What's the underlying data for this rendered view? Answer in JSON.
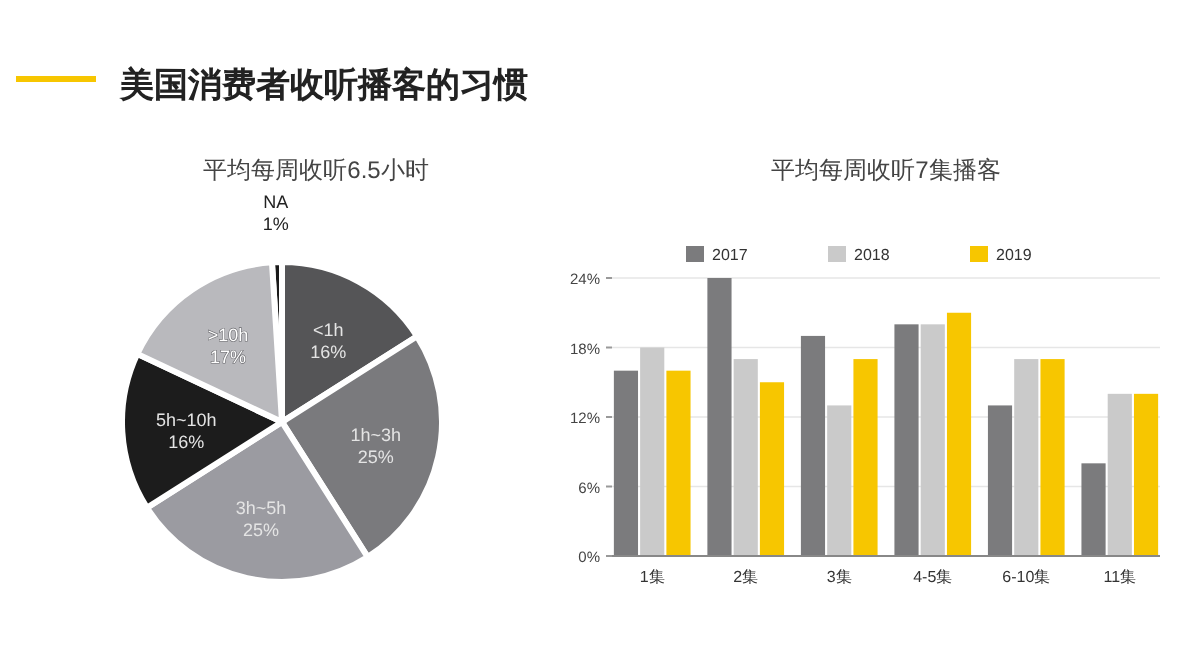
{
  "chart_data": [
    {
      "type": "pie",
      "title": "美国消费者收听播客的习惯",
      "subtitle": "平均每周收听6.5小时",
      "categories": [
        "NA",
        "<1h",
        "1h~3h",
        "3h~5h",
        "5h~10h",
        ">10h"
      ],
      "values": [
        1,
        16,
        25,
        25,
        16,
        17
      ],
      "value_labels": [
        "1%",
        "16%",
        "25%",
        "25%",
        "16%",
        "17%"
      ],
      "colors": [
        "#1a1a1a",
        "#555557",
        "#7a7a7d",
        "#9b9ba1",
        "#1c1c1c",
        "#b9b9bd"
      ]
    },
    {
      "type": "bar",
      "title": "平均每周收听7集播客",
      "categories": [
        "1集",
        "2集",
        "3集",
        "4-5集",
        "6-10集",
        "11集"
      ],
      "series": [
        {
          "name": "2017",
          "color": "#7b7b7d",
          "values": [
            16,
            24,
            19,
            20,
            13,
            8
          ]
        },
        {
          "name": "2018",
          "color": "#cacaca",
          "values": [
            18,
            17,
            13,
            20,
            17,
            14
          ]
        },
        {
          "name": "2019",
          "color": "#f7c600",
          "values": [
            16,
            15,
            17,
            21,
            17,
            14
          ]
        }
      ],
      "ylim": [
        0,
        24
      ],
      "yticks": [
        {
          "value": 0,
          "label": "0%"
        },
        {
          "value": 6,
          "label": "6%"
        },
        {
          "value": 12,
          "label": "12%"
        },
        {
          "value": 18,
          "label": "18%"
        },
        {
          "value": 24,
          "label": "24%"
        }
      ],
      "grid": "y",
      "legend": "top"
    }
  ]
}
